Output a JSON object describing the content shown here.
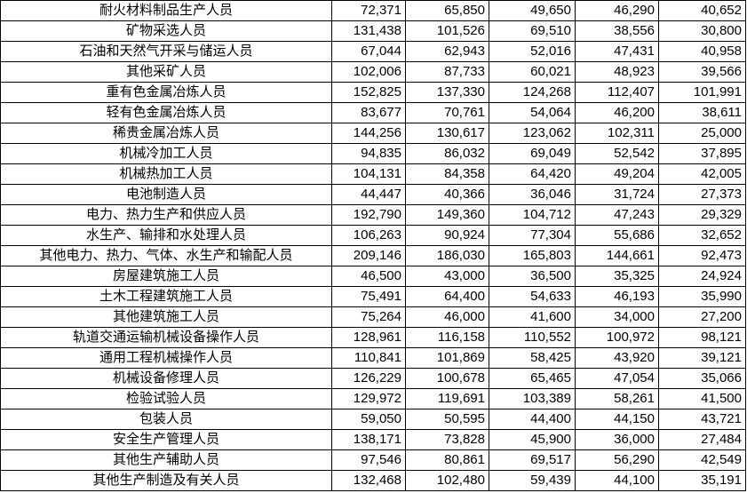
{
  "rows": [
    {
      "name": "耐火材料制品生产人员",
      "values": [
        "72,371",
        "65,850",
        "49,650",
        "46,290",
        "40,652"
      ]
    },
    {
      "name": "矿物采选人员",
      "values": [
        "131,438",
        "101,526",
        "69,510",
        "38,556",
        "30,800"
      ]
    },
    {
      "name": "石油和天然气开采与储运人员",
      "values": [
        "67,044",
        "62,943",
        "52,016",
        "47,431",
        "40,958"
      ]
    },
    {
      "name": "其他采矿人员",
      "values": [
        "102,006",
        "87,733",
        "60,021",
        "48,923",
        "39,566"
      ]
    },
    {
      "name": "重有色金属冶炼人员",
      "values": [
        "152,825",
        "137,330",
        "124,268",
        "112,407",
        "101,991"
      ]
    },
    {
      "name": "轻有色金属冶炼人员",
      "values": [
        "83,677",
        "70,761",
        "54,064",
        "46,200",
        "38,611"
      ]
    },
    {
      "name": "稀贵金属冶炼人员",
      "values": [
        "144,256",
        "130,617",
        "123,062",
        "102,311",
        "25,000"
      ]
    },
    {
      "name": "机械冷加工人员",
      "values": [
        "94,835",
        "86,032",
        "69,049",
        "52,542",
        "37,895"
      ]
    },
    {
      "name": "机械热加工人员",
      "values": [
        "104,131",
        "84,358",
        "64,420",
        "49,204",
        "42,005"
      ]
    },
    {
      "name": "电池制造人员",
      "values": [
        "44,447",
        "40,366",
        "36,046",
        "31,724",
        "27,373"
      ]
    },
    {
      "name": "电力、热力生产和供应人员",
      "values": [
        "192,790",
        "149,360",
        "104,712",
        "47,243",
        "29,329"
      ]
    },
    {
      "name": "水生产、输排和水处理人员",
      "values": [
        "106,263",
        "90,924",
        "77,304",
        "55,686",
        "32,652"
      ]
    },
    {
      "name": "其他电力、热力、气体、水生产和输配人员",
      "values": [
        "209,146",
        "186,030",
        "165,803",
        "144,661",
        "92,473"
      ]
    },
    {
      "name": "房屋建筑施工人员",
      "values": [
        "46,500",
        "43,000",
        "36,500",
        "35,325",
        "24,924"
      ]
    },
    {
      "name": "土木工程建筑施工人员",
      "values": [
        "75,491",
        "64,400",
        "54,633",
        "46,193",
        "35,990"
      ]
    },
    {
      "name": "其他建筑施工人员",
      "values": [
        "75,264",
        "46,000",
        "41,600",
        "34,000",
        "27,200"
      ]
    },
    {
      "name": "轨道交通运输机械设备操作人员",
      "values": [
        "128,961",
        "116,158",
        "110,552",
        "100,972",
        "98,121"
      ]
    },
    {
      "name": "通用工程机械操作人员",
      "values": [
        "110,841",
        "101,869",
        "58,425",
        "43,920",
        "39,121"
      ]
    },
    {
      "name": "机械设备修理人员",
      "values": [
        "126,229",
        "100,678",
        "65,465",
        "47,054",
        "35,066"
      ]
    },
    {
      "name": "检验试验人员",
      "values": [
        "129,972",
        "119,691",
        "103,389",
        "58,261",
        "41,500"
      ]
    },
    {
      "name": "包装人员",
      "values": [
        "59,050",
        "50,595",
        "44,400",
        "44,150",
        "43,721"
      ]
    },
    {
      "name": "安全生产管理人员",
      "values": [
        "138,171",
        "73,828",
        "45,900",
        "36,000",
        "27,484"
      ]
    },
    {
      "name": "其他生产辅助人员",
      "values": [
        "97,546",
        "80,861",
        "69,517",
        "56,290",
        "42,549"
      ]
    },
    {
      "name": "其他生产制造及有关人员",
      "values": [
        "132,468",
        "102,480",
        "59,439",
        "44,100",
        "35,191"
      ]
    }
  ]
}
